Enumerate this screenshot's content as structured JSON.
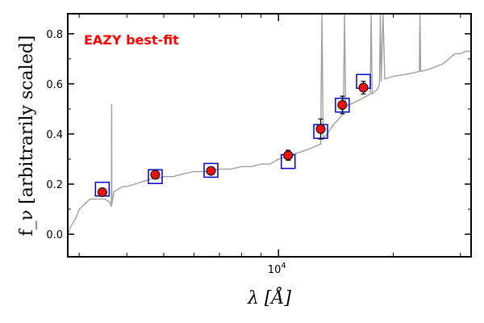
{
  "chart_data": {
    "type": "scatter",
    "title": "",
    "annotation": "EAZY best-fit",
    "annotation_color": "#ff0000",
    "xlabel": "λ [Å]",
    "ylabel": "f_ν [arbitrarily scaled]",
    "x_scale": "log",
    "xlim": [
      2800,
      32000
    ],
    "ylim": [
      -0.09,
      0.88
    ],
    "y_ticks": [
      0.0,
      0.2,
      0.4,
      0.6,
      0.8
    ],
    "y_tick_labels": [
      "0.0",
      "0.2",
      "0.4",
      "0.6",
      "0.8"
    ],
    "x_major_ticks": [
      10000
    ],
    "x_major_tick_label": "10^4",
    "x_minor_ticks": [
      3000,
      4000,
      5000,
      6000,
      7000,
      8000,
      9000,
      20000,
      30000
    ],
    "grid": false,
    "series": [
      {
        "kind": "line",
        "color": "#a0a0a0",
        "x": [
          2800,
          2850,
          2900,
          2950,
          3000,
          3100,
          3200,
          3300,
          3400,
          3500,
          3600,
          3645,
          3650,
          3655,
          3700,
          3800,
          3900,
          4000,
          4200,
          4400,
          4600,
          4800,
          5000,
          5300,
          5600,
          6000,
          6500,
          7000,
          7500,
          8000,
          8500,
          9000,
          9500,
          10000,
          11000,
          12000,
          12900,
          13000,
          13100,
          14000,
          14800,
          14900,
          15000,
          16000,
          17000,
          17400,
          17500,
          17600,
          18200,
          18400,
          18500,
          18600,
          18800,
          19000,
          20000,
          22000,
          23400,
          23500,
          23600,
          25000,
          27000,
          28000,
          29000,
          30000,
          31000,
          32000
        ],
        "y": [
          0.0,
          0.03,
          0.05,
          0.07,
          0.1,
          0.12,
          0.14,
          0.14,
          0.14,
          0.14,
          0.13,
          0.11,
          0.52,
          0.12,
          0.17,
          0.18,
          0.19,
          0.19,
          0.2,
          0.21,
          0.22,
          0.22,
          0.23,
          0.23,
          0.24,
          0.25,
          0.25,
          0.26,
          0.26,
          0.27,
          0.27,
          0.28,
          0.28,
          0.3,
          0.32,
          0.34,
          0.36,
          0.88,
          0.38,
          0.44,
          0.48,
          0.88,
          0.51,
          0.53,
          0.55,
          0.56,
          0.88,
          0.56,
          0.58,
          0.6,
          0.88,
          0.61,
          0.88,
          0.62,
          0.63,
          0.64,
          0.65,
          0.88,
          0.65,
          0.66,
          0.68,
          0.7,
          0.72,
          0.72,
          0.73,
          0.73
        ]
      },
      {
        "kind": "model_points",
        "marker": "square",
        "color": "#0000cc",
        "x": [
          3450,
          4750,
          6650,
          10600,
          12900,
          14700,
          16700
        ],
        "y": [
          0.18,
          0.23,
          0.255,
          0.29,
          0.41,
          0.515,
          0.61
        ]
      },
      {
        "kind": "observed",
        "marker": "circle",
        "color": "#ee1111",
        "x": [
          3450,
          4750,
          6650,
          10600,
          12900,
          14700,
          16700
        ],
        "y": [
          0.168,
          0.238,
          0.253,
          0.315,
          0.42,
          0.516,
          0.585
        ],
        "yerr": [
          0.01,
          0.01,
          0.01,
          0.02,
          0.04,
          0.035,
          0.025
        ]
      }
    ]
  }
}
